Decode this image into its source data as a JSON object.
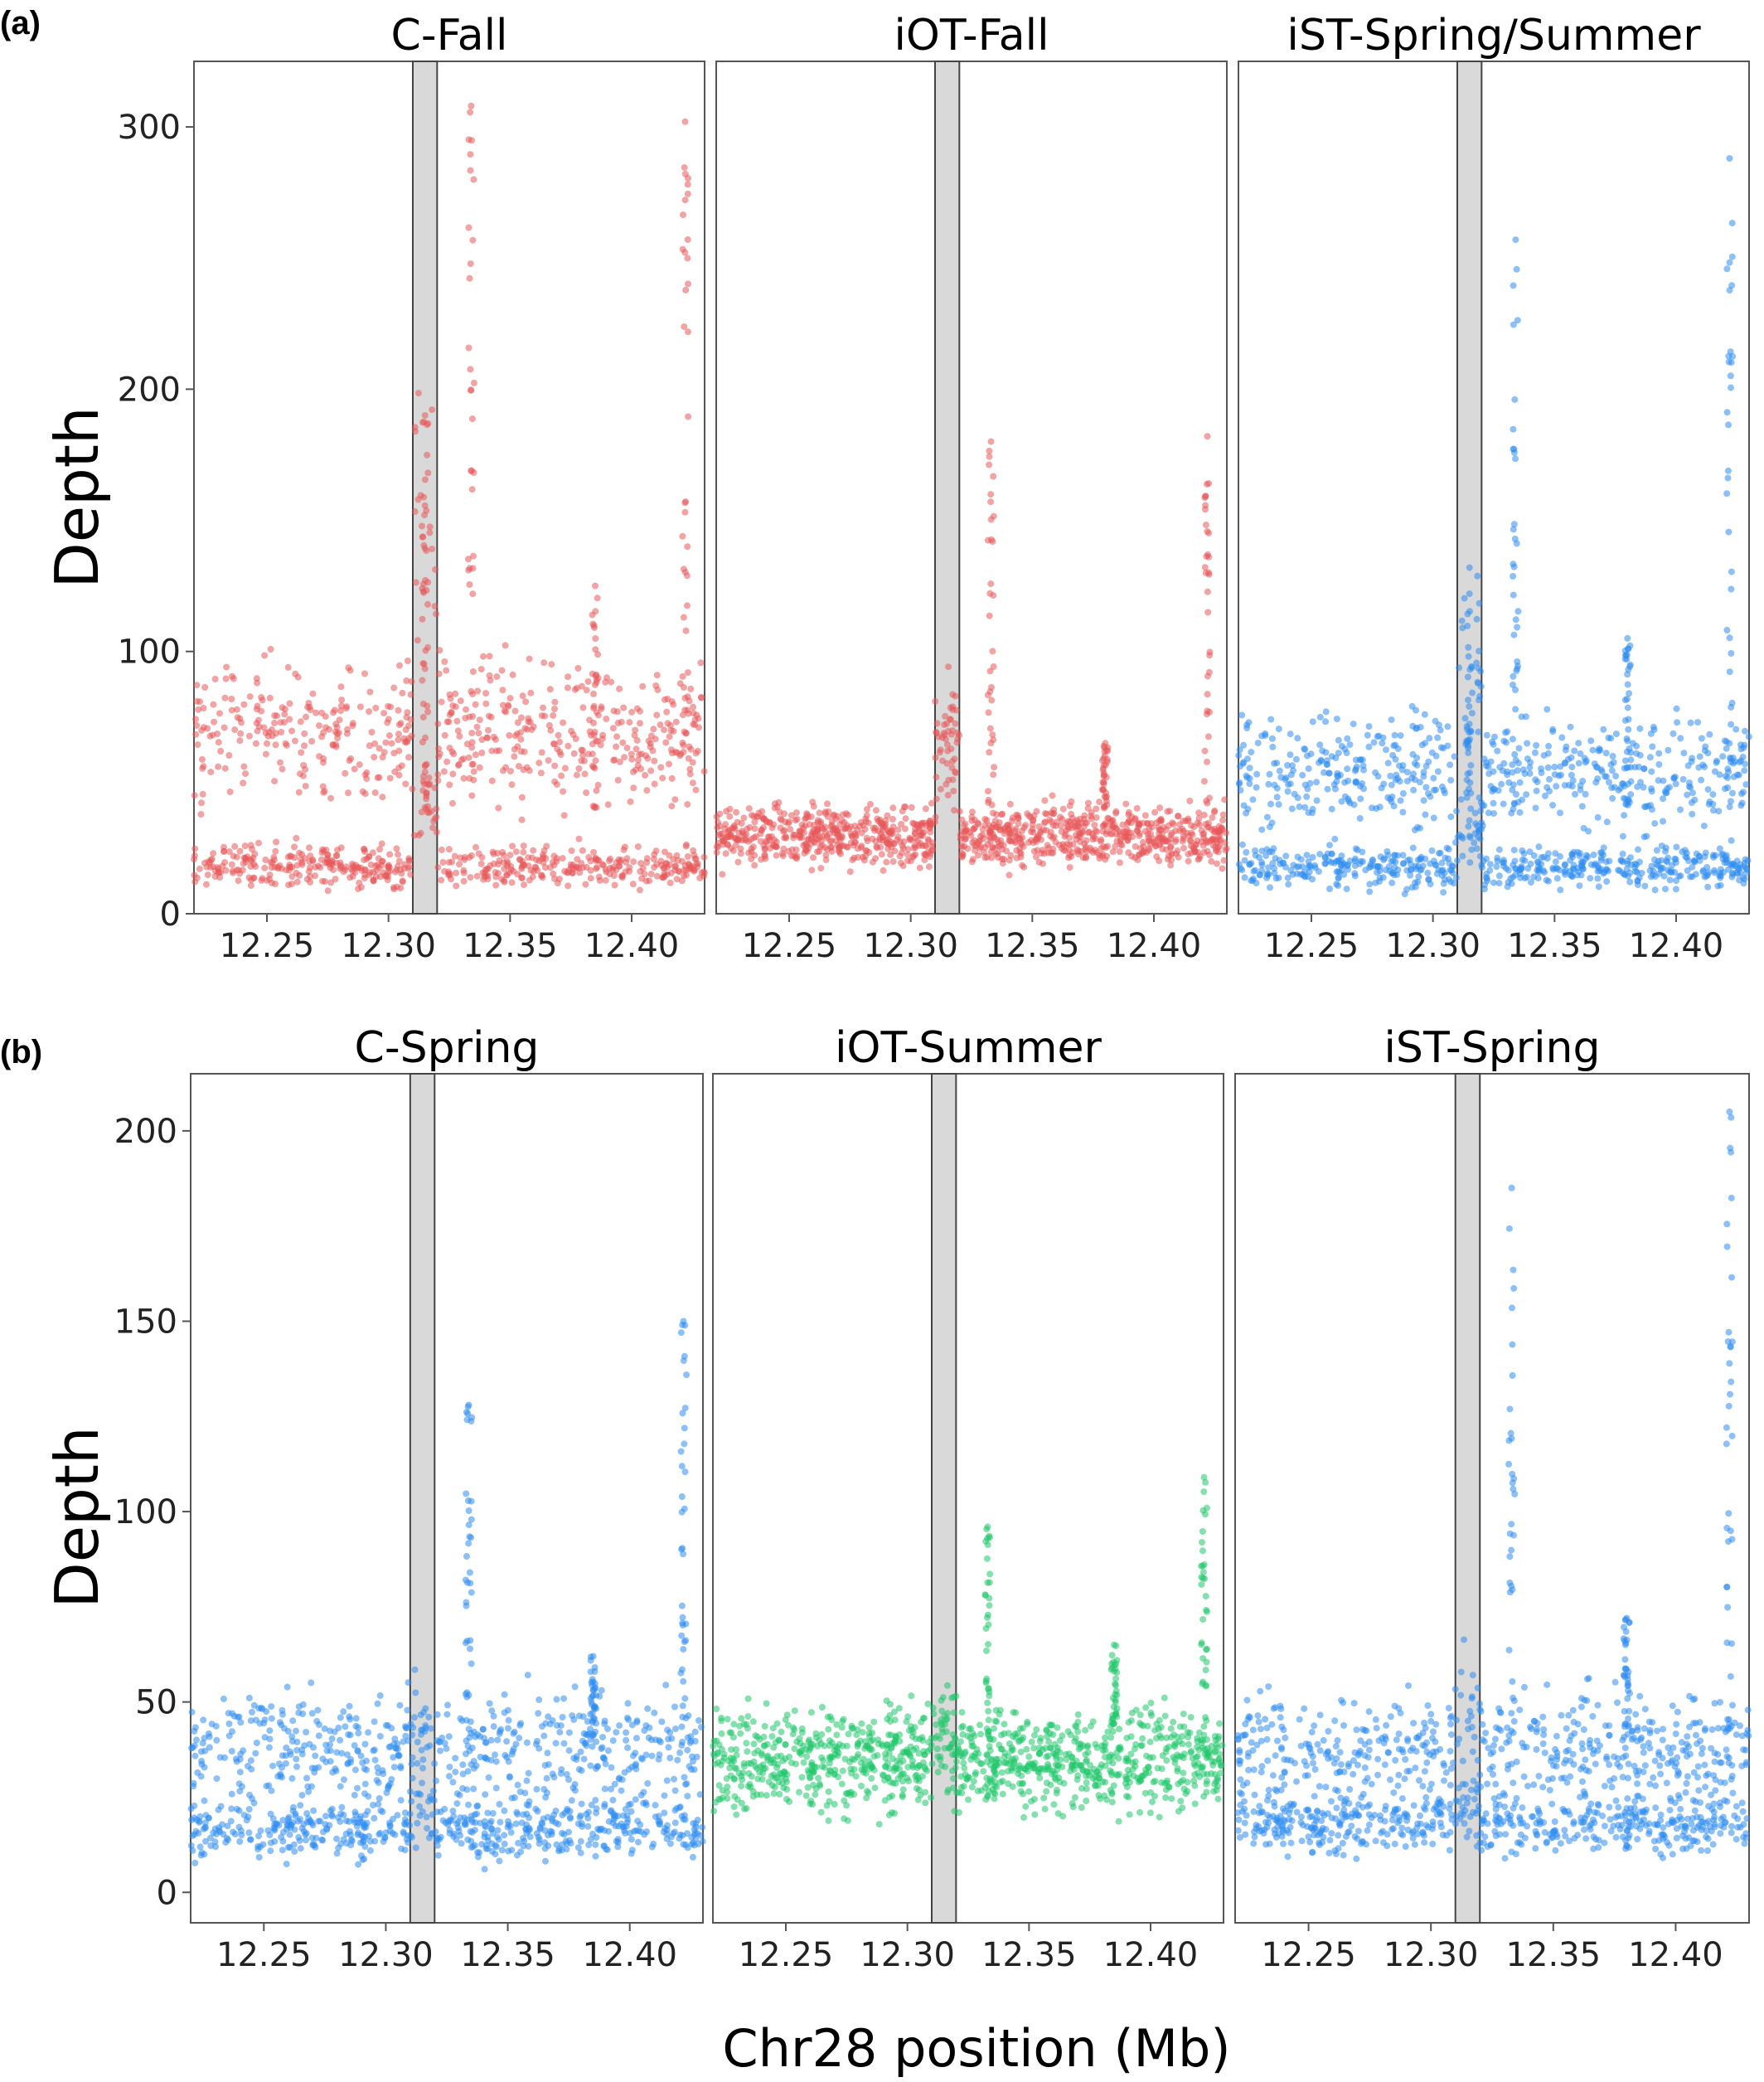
{
  "figure": {
    "x_axis_label": "Chr28 position (Mb)",
    "highlight_band_mb": [
      12.31,
      12.32
    ]
  },
  "panels": [
    {
      "label": "(a)",
      "y_axis_label": "Depth"
    },
    {
      "label": "(b)",
      "y_axis_label": "Depth"
    }
  ],
  "chart_data": [
    {
      "type": "scatter",
      "panel": "(a)",
      "title": "C-Fall",
      "color": "#e8585a",
      "xlim": [
        12.22,
        12.43
      ],
      "ylim": [
        0,
        325
      ],
      "xticks": [
        "12.25",
        "12.30",
        "12.35",
        "12.40"
      ],
      "yticks": [
        "0",
        "100",
        "200",
        "300"
      ],
      "bands": [
        {
          "from": 12.22,
          "to": 12.31,
          "levels": [
            18,
            70
          ]
        },
        {
          "from": 12.31,
          "to": 12.32,
          "levels": [
            40,
            140
          ]
        },
        {
          "from": 12.32,
          "to": 12.43,
          "levels": [
            18,
            70
          ]
        }
      ],
      "peaks": [
        {
          "x": 12.315,
          "y": 190
        },
        {
          "x": 12.334,
          "y": 308
        },
        {
          "x": 12.385,
          "y": 125
        },
        {
          "x": 12.422,
          "y": 302
        }
      ]
    },
    {
      "type": "scatter",
      "panel": "(a)",
      "title": "iOT-Fall",
      "color": "#e8585a",
      "xlim": [
        12.22,
        12.43
      ],
      "ylim": [
        0,
        325
      ],
      "xticks": [
        "12.25",
        "12.30",
        "12.35",
        "12.40"
      ],
      "yticks": [
        "0",
        "100",
        "200",
        "300"
      ],
      "bands": [
        {
          "from": 12.22,
          "to": 12.31,
          "levels": [
            30
          ]
        },
        {
          "from": 12.31,
          "to": 12.32,
          "levels": [
            65
          ]
        },
        {
          "from": 12.32,
          "to": 12.43,
          "levels": [
            30
          ]
        }
      ],
      "peaks": [
        {
          "x": 12.333,
          "y": 180
        },
        {
          "x": 12.38,
          "y": 65
        },
        {
          "x": 12.422,
          "y": 182
        }
      ]
    },
    {
      "type": "scatter",
      "panel": "(a)",
      "title": "iST-Spring/Summer",
      "color": "#2d8cf0",
      "xlim": [
        12.22,
        12.43
      ],
      "ylim": [
        0,
        325
      ],
      "xticks": [
        "12.25",
        "12.30",
        "12.35",
        "12.40"
      ],
      "yticks": [
        "0",
        "100",
        "200",
        "300"
      ],
      "bands": [
        {
          "from": 12.22,
          "to": 12.31,
          "levels": [
            18,
            55
          ]
        },
        {
          "from": 12.31,
          "to": 12.32,
          "levels": [
            30,
            95
          ]
        },
        {
          "from": 12.32,
          "to": 12.43,
          "levels": [
            18,
            55
          ]
        }
      ],
      "peaks": [
        {
          "x": 12.315,
          "y": 122
        },
        {
          "x": 12.334,
          "y": 257
        },
        {
          "x": 12.38,
          "y": 105
        },
        {
          "x": 12.422,
          "y": 288
        }
      ]
    },
    {
      "type": "scatter",
      "panel": "(b)",
      "title": "C-Spring",
      "color": "#2d8cf0",
      "xlim": [
        12.22,
        12.43
      ],
      "ylim": [
        -8,
        215
      ],
      "xticks": [
        "12.25",
        "12.30",
        "12.35",
        "12.40"
      ],
      "yticks": [
        "0",
        "50",
        "100",
        "150",
        "200"
      ],
      "bands": [
        {
          "from": 12.22,
          "to": 12.31,
          "levels": [
            17,
            38
          ]
        },
        {
          "from": 12.31,
          "to": 12.32,
          "levels": [
            20,
            42
          ]
        },
        {
          "from": 12.32,
          "to": 12.43,
          "levels": [
            17,
            38
          ]
        }
      ],
      "peaks": [
        {
          "x": 12.334,
          "y": 128
        },
        {
          "x": 12.385,
          "y": 62
        },
        {
          "x": 12.422,
          "y": 150
        }
      ]
    },
    {
      "type": "scatter",
      "panel": "(b)",
      "title": "iOT-Summer",
      "color": "#1fc76a",
      "xlim": [
        12.22,
        12.43
      ],
      "ylim": [
        -8,
        215
      ],
      "xticks": [
        "12.25",
        "12.30",
        "12.35",
        "12.40"
      ],
      "yticks": [
        "0",
        "50",
        "100",
        "150",
        "200"
      ],
      "bands": [
        {
          "from": 12.22,
          "to": 12.31,
          "levels": [
            35
          ]
        },
        {
          "from": 12.31,
          "to": 12.32,
          "levels": [
            42
          ]
        },
        {
          "from": 12.32,
          "to": 12.43,
          "levels": [
            35
          ]
        }
      ],
      "peaks": [
        {
          "x": 12.333,
          "y": 96
        },
        {
          "x": 12.385,
          "y": 65
        },
        {
          "x": 12.422,
          "y": 109
        }
      ]
    },
    {
      "type": "scatter",
      "panel": "(b)",
      "title": "iST-Spring",
      "color": "#2d8cf0",
      "xlim": [
        12.22,
        12.43
      ],
      "ylim": [
        -8,
        215
      ],
      "xticks": [
        "12.25",
        "12.30",
        "12.35",
        "12.40"
      ],
      "yticks": [
        "0",
        "50",
        "100",
        "150",
        "200"
      ],
      "bands": [
        {
          "from": 12.22,
          "to": 12.31,
          "levels": [
            18,
            38
          ]
        },
        {
          "from": 12.31,
          "to": 12.32,
          "levels": [
            22,
            48
          ]
        },
        {
          "from": 12.32,
          "to": 12.43,
          "levels": [
            18,
            38
          ]
        }
      ],
      "peaks": [
        {
          "x": 12.333,
          "y": 185
        },
        {
          "x": 12.38,
          "y": 72
        },
        {
          "x": 12.422,
          "y": 205
        }
      ]
    }
  ]
}
